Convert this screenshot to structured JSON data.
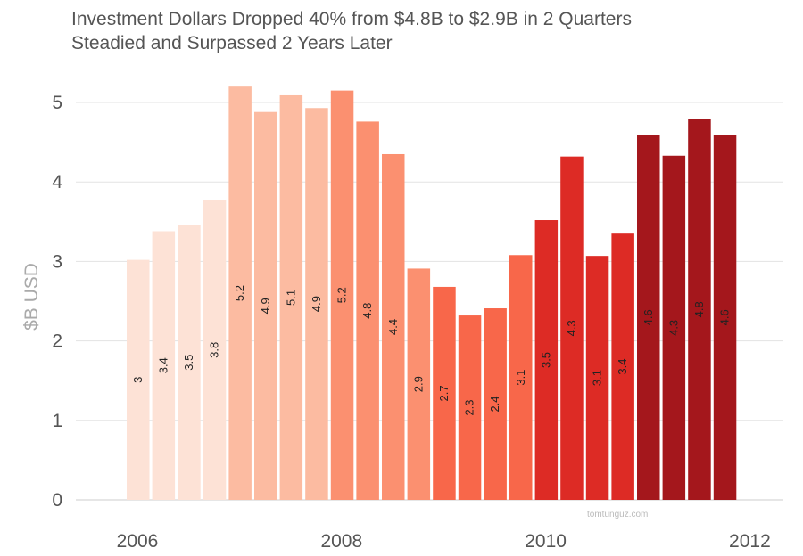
{
  "chart_data": {
    "type": "bar",
    "title": [
      "Investment Dollars Dropped 40% from $4.8B to $2.9B in 2 Quarters",
      "Steadied and Surpassed 2 Years Later"
    ],
    "ylabel": "$B USD",
    "xlabel": "",
    "ylim": [
      0,
      5.3
    ],
    "yticks": [
      0,
      1,
      2,
      3,
      4,
      5
    ],
    "xtick_labels": [
      "2006",
      "2008",
      "2010",
      "2012"
    ],
    "grid": true,
    "legend": "none",
    "values": [
      3.02,
      3.38,
      3.46,
      3.77,
      5.2,
      4.88,
      5.09,
      4.93,
      5.15,
      4.76,
      4.35,
      2.91,
      2.68,
      2.32,
      2.41,
      3.08,
      3.52,
      4.32,
      3.07,
      3.35,
      4.59,
      4.33,
      4.79,
      4.59
    ],
    "data_labels": [
      "3",
      "3.4",
      "3.5",
      "3.8",
      "5.2",
      "4.9",
      "5.1",
      "4.9",
      "5.2",
      "4.8",
      "4.4",
      "2.9",
      "2.7",
      "2.3",
      "2.4",
      "3.1",
      "3.5",
      "4.3",
      "3.1",
      "3.4",
      "4.6",
      "4.3",
      "4.8",
      "4.6"
    ],
    "colors": [
      "#fde2d6",
      "#fde2d6",
      "#fde2d6",
      "#fde2d6",
      "#fcbba1",
      "#fcbba1",
      "#fcbba1",
      "#fcbba1",
      "#fb9070",
      "#fb9070",
      "#fb9070",
      "#fb9070",
      "#f8674a",
      "#f8674a",
      "#f8674a",
      "#f8674a",
      "#dd2b25",
      "#dd2b25",
      "#dd2b25",
      "#dd2b25",
      "#a4171c",
      "#a4171c",
      "#a4171c",
      "#a4171c"
    ]
  },
  "watermark": "tomtunguz.com"
}
